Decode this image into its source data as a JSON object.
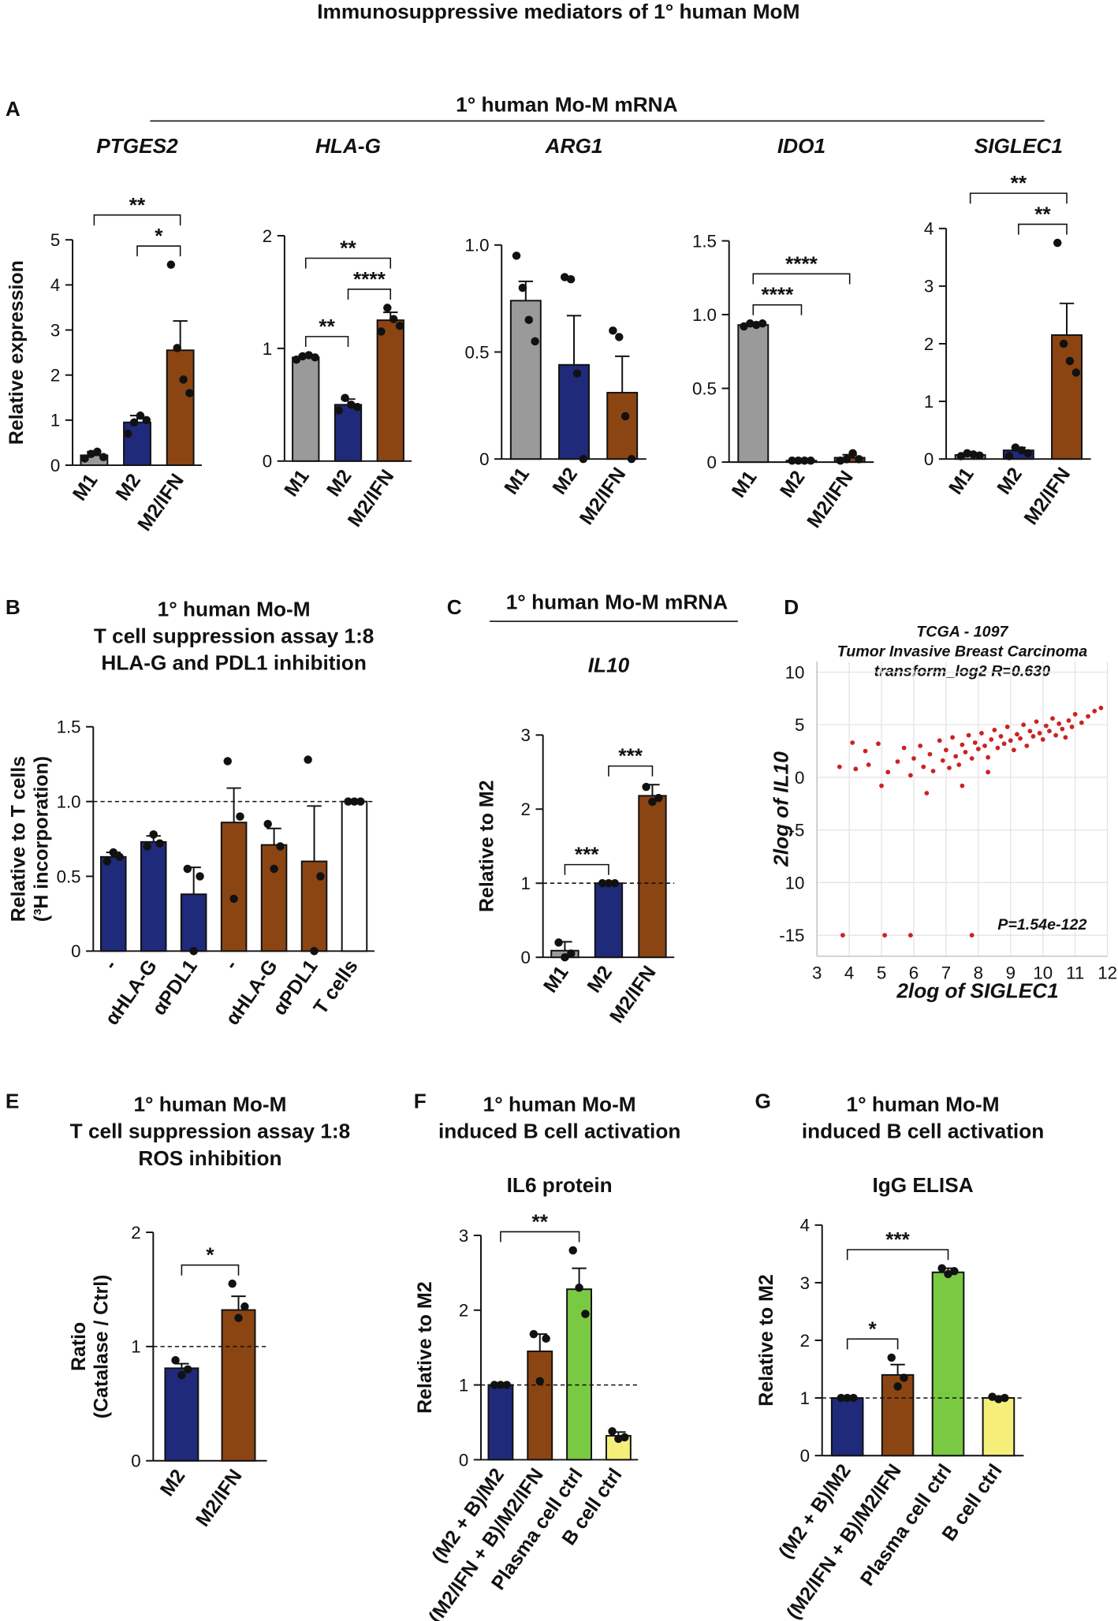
{
  "title": "Immunosuppressive mediators of 1° human MoM",
  "group_title": "1° human Mo-M mRNA",
  "chart_data": [
    {
      "type": "bar",
      "panel": "A",
      "subtitle": "PTGES2",
      "ylabel": [
        "Relative expression"
      ],
      "categories": [
        "M1",
        "M2",
        "M2/IFN"
      ],
      "values": [
        0.22,
        0.95,
        2.55
      ],
      "errors": [
        0.08,
        0.15,
        0.65
      ],
      "colors": [
        "#9a9a9a",
        "#1f2a7a",
        "#8b4513"
      ],
      "points": [
        [
          0.15,
          0.25,
          0.3,
          0.18
        ],
        [
          0.7,
          0.95,
          1.1,
          1.0
        ],
        [
          4.45,
          2.6,
          1.9,
          1.6
        ]
      ],
      "ylim": [
        0,
        5
      ],
      "yticks": [
        0,
        1,
        2,
        3,
        4,
        5
      ],
      "annotations": [
        {
          "from": 1,
          "to": 2,
          "label": "*"
        },
        {
          "from": 0,
          "to": 2,
          "label": "**"
        }
      ]
    },
    {
      "type": "bar",
      "subtitle": "HLA-G",
      "categories": [
        "M1",
        "M2",
        "M2/IFN"
      ],
      "values": [
        0.92,
        0.5,
        1.25
      ],
      "errors": [
        0.02,
        0.05,
        0.07
      ],
      "colors": [
        "#9a9a9a",
        "#1f2a7a",
        "#8b4513"
      ],
      "points": [
        [
          0.9,
          0.93,
          0.94,
          0.92
        ],
        [
          0.45,
          0.56,
          0.5,
          0.48
        ],
        [
          1.15,
          1.36,
          1.26,
          1.2
        ]
      ],
      "ylim": [
        0,
        2
      ],
      "yticks": [
        0,
        1,
        2
      ],
      "annotations": [
        {
          "from": 0,
          "to": 1,
          "label": "**"
        },
        {
          "from": 1,
          "to": 2,
          "label": "****"
        },
        {
          "from": 0,
          "to": 2,
          "label": "**"
        }
      ]
    },
    {
      "type": "bar",
      "subtitle": "ARG1",
      "categories": [
        "M1",
        "M2",
        "M2/IFN"
      ],
      "values": [
        0.74,
        0.44,
        0.31
      ],
      "errors": [
        0.09,
        0.23,
        0.17
      ],
      "colors": [
        "#9a9a9a",
        "#1f2a7a",
        "#8b4513"
      ],
      "points": [
        [
          0.95,
          0.8,
          0.65,
          0.55
        ],
        [
          0.85,
          0.84,
          0.4,
          0.0
        ],
        [
          0.6,
          0.57,
          0.2,
          0.0
        ]
      ],
      "ylim": [
        0,
        1
      ],
      "yticks": [
        0,
        0.5,
        {
          "value": 1,
          "label": "1.0"
        }
      ],
      "annotations": []
    },
    {
      "type": "bar",
      "subtitle": "IDO1",
      "categories": [
        "M1",
        "M2",
        "M2/IFN"
      ],
      "values": [
        0.93,
        0.01,
        0.03
      ],
      "errors": [
        0.01,
        0.005,
        0.02
      ],
      "colors": [
        "#9a9a9a",
        "#1f2a7a",
        "#8b4513"
      ],
      "points": [
        [
          0.92,
          0.94,
          0.93,
          0.94
        ],
        [
          0.01,
          0.01,
          0.01,
          0.01
        ],
        [
          0.01,
          0.02,
          0.06,
          0.02
        ]
      ],
      "ylim": [
        0,
        1.5
      ],
      "yticks": [
        0,
        0.5,
        {
          "value": 1,
          "label": "1.0"
        },
        1.5
      ],
      "annotations": [
        {
          "from": 0,
          "to": 1,
          "label": "****"
        },
        {
          "from": 0,
          "to": 2,
          "label": "****"
        }
      ]
    },
    {
      "type": "bar",
      "subtitle": "SIGLEC1",
      "categories": [
        "M1",
        "M2",
        "M2/IFN"
      ],
      "values": [
        0.07,
        0.15,
        2.15
      ],
      "errors": [
        0.02,
        0.05,
        0.55
      ],
      "colors": [
        "#9a9a9a",
        "#1f2a7a",
        "#8b4513"
      ],
      "points": [
        [
          0.05,
          0.1,
          0.08,
          0.06
        ],
        [
          0.05,
          0.2,
          0.15,
          0.1
        ],
        [
          3.75,
          2.0,
          1.7,
          1.5
        ]
      ],
      "ylim": [
        0,
        4
      ],
      "yticks": [
        0,
        1,
        2,
        3,
        4
      ],
      "annotations": [
        {
          "from": 1,
          "to": 2,
          "label": "**"
        },
        {
          "from": 0,
          "to": 2,
          "label": "**"
        }
      ]
    },
    {
      "type": "bar",
      "panel": "B",
      "title": [
        "1° human Mo-M",
        "T cell suppression assay 1:8",
        "HLA-G and PDL1 inhibition"
      ],
      "ylabel": [
        "Relative to T cells",
        "(³H incorporation)"
      ],
      "categories": [
        "-",
        "αHLA-G",
        "αPDL1",
        "-",
        "αHLA-G",
        "αPDL1",
        "T cells"
      ],
      "values": [
        0.63,
        0.73,
        0.38,
        0.86,
        0.71,
        0.6,
        1.0
      ],
      "errors": [
        0.03,
        0.04,
        0.18,
        0.23,
        0.11,
        0.37,
        0.0
      ],
      "colors": [
        "#1f2a7a",
        "#1f2a7a",
        "#1f2a7a",
        "#8b4513",
        "#8b4513",
        "#8b4513",
        "#ffffff"
      ],
      "points": [
        [
          0.6,
          0.66,
          0.63
        ],
        [
          0.7,
          0.78,
          0.72
        ],
        [
          0.55,
          0.0,
          0.5
        ],
        [
          1.27,
          0.35,
          0.9
        ],
        [
          0.85,
          0.55,
          0.7
        ],
        [
          1.28,
          0.0,
          0.5
        ],
        [
          1.0,
          1.0,
          1.0
        ]
      ],
      "ylim": [
        0,
        1.5
      ],
      "yticks": [
        0,
        0.5,
        {
          "value": 1,
          "label": "1.0"
        },
        1.5
      ],
      "reference_line": 1,
      "annotations": []
    },
    {
      "type": "bar",
      "panel": "C",
      "header": "1° human Mo-M mRNA",
      "subtitle": "IL10",
      "ylabel": [
        "Relative to M2"
      ],
      "categories": [
        "M1",
        "M2",
        "M2/IFN"
      ],
      "values": [
        0.09,
        1.0,
        2.18
      ],
      "errors": [
        0.12,
        0.0,
        0.15
      ],
      "colors": [
        "#9a9a9a",
        "#1f2a7a",
        "#8b4513"
      ],
      "points": [
        [
          0.2,
          0.0,
          0.05
        ],
        [
          1.0,
          1.0,
          1.0
        ],
        [
          2.3,
          2.1,
          2.15
        ]
      ],
      "ylim": [
        0,
        3
      ],
      "yticks": [
        0,
        1,
        2,
        3
      ],
      "reference_line": 1,
      "annotations": [
        {
          "from": 0,
          "to": 1,
          "label": "***"
        },
        {
          "from": 1,
          "to": 2,
          "label": "***"
        }
      ]
    },
    {
      "type": "scatter",
      "panel": "D",
      "title": [
        "TCGA - 1097",
        "Tumor Invasive Breast Carcinoma",
        "transform_log2 R=0.630"
      ],
      "xlabel": "2log of SIGLEC1",
      "ylabel": [
        "2log of IL10"
      ],
      "annotation": "P=1.54e-122",
      "color": "#cc2222",
      "grid": true,
      "x": [
        4.2,
        4.5,
        4.6,
        4.9,
        5.2,
        5.0,
        5.5,
        5.7,
        5.9,
        6.0,
        6.2,
        6.3,
        6.5,
        6.6,
        6.8,
        6.9,
        7.0,
        7.1,
        7.2,
        7.3,
        7.4,
        7.5,
        7.6,
        7.7,
        7.8,
        7.9,
        8.0,
        8.1,
        8.2,
        8.3,
        8.4,
        8.5,
        8.6,
        8.7,
        8.8,
        8.9,
        9.0,
        9.1,
        9.2,
        9.3,
        9.4,
        9.5,
        9.6,
        9.7,
        9.8,
        9.9,
        10.0,
        10.1,
        10.2,
        10.3,
        10.4,
        10.5,
        10.6,
        10.7,
        10.8,
        10.9,
        11.0,
        11.2,
        11.4,
        11.6,
        11.8,
        3.8,
        5.1,
        5.9,
        7.8,
        6.4,
        7.5,
        8.3,
        3.7,
        4.1
      ],
      "y": [
        0.8,
        2.5,
        1.2,
        3.2,
        0.5,
        -0.8,
        1.5,
        2.8,
        0.2,
        1.8,
        3.0,
        1.0,
        2.2,
        0.6,
        3.5,
        1.6,
        2.6,
        0.9,
        3.8,
        2.0,
        1.2,
        3.1,
        2.4,
        4.0,
        1.8,
        3.3,
        2.7,
        4.2,
        3.0,
        1.9,
        3.6,
        4.5,
        2.8,
        3.9,
        3.2,
        4.8,
        3.5,
        2.6,
        4.1,
        3.7,
        5.0,
        3.0,
        4.4,
        3.9,
        5.3,
        4.2,
        3.6,
        4.9,
        4.4,
        5.6,
        4.0,
        5.1,
        4.6,
        3.8,
        5.4,
        4.8,
        6.0,
        5.2,
        5.8,
        6.3,
        6.6,
        -15,
        -15,
        -15,
        -15,
        -1.5,
        -0.8,
        0.5,
        1.0,
        3.3
      ],
      "xlim": [
        3,
        12
      ],
      "xticks": [
        3,
        4,
        5,
        6,
        7,
        8,
        9,
        10,
        11,
        12
      ],
      "ylim": [
        -17,
        11
      ],
      "yticks": [
        10,
        5,
        0,
        -5,
        {
          "value": -10,
          "label": "10"
        },
        -15
      ]
    },
    {
      "type": "bar",
      "panel": "E",
      "title": [
        "1° human Mo-M",
        "T cell suppression assay 1:8",
        "ROS inhibition"
      ],
      "ylabel": [
        "Ratio",
        "(Catalase / Ctrl)"
      ],
      "categories": [
        "M2",
        "M2/IFN"
      ],
      "values": [
        0.81,
        1.32
      ],
      "errors": [
        0.04,
        0.12
      ],
      "colors": [
        "#1f2a7a",
        "#8b4513"
      ],
      "points": [
        [
          0.88,
          0.75,
          0.8
        ],
        [
          1.55,
          1.25,
          1.35
        ]
      ],
      "ylim": [
        0,
        2
      ],
      "yticks": [
        0,
        1,
        2
      ],
      "reference_line": 1,
      "annotations": [
        {
          "from": 0,
          "to": 1,
          "label": "*"
        }
      ]
    },
    {
      "type": "bar",
      "panel": "F",
      "title": [
        "1° human Mo-M",
        "induced B cell activation"
      ],
      "subtitle": "IL6 protein",
      "ylabel": [
        "Relative to M2"
      ],
      "categories": [
        "(M2 + B)/M2",
        "(M2/IFN + B)/M2/IFN",
        "Plasma cell ctrl",
        "B cell ctrl"
      ],
      "values": [
        1.0,
        1.45,
        2.28,
        0.32
      ],
      "errors": [
        0.0,
        0.23,
        0.28,
        0.05
      ],
      "colors": [
        "#1f2a7a",
        "#8b4513",
        "#7ac943",
        "#f5ef7a"
      ],
      "points": [
        [
          1.0,
          1.0,
          1.0
        ],
        [
          1.68,
          1.05,
          1.62
        ],
        [
          2.8,
          2.3,
          1.95
        ],
        [
          0.38,
          0.28,
          0.3
        ]
      ],
      "ylim": [
        0,
        3
      ],
      "yticks": [
        0,
        1,
        2,
        3
      ],
      "reference_line": 1,
      "annotations": [
        {
          "from": 0,
          "to": 2,
          "label": "**"
        }
      ]
    },
    {
      "type": "bar",
      "panel": "G",
      "title": [
        "1° human Mo-M",
        "induced B cell activation"
      ],
      "subtitle": "IgG ELISA",
      "ylabel": [
        "Relative to M2"
      ],
      "categories": [
        "(M2 + B)/M2",
        "(M2/IFN + B)/M2/IFN",
        "Plasma cell ctrl",
        "B cell ctrl"
      ],
      "values": [
        1.0,
        1.4,
        3.18,
        1.0
      ],
      "errors": [
        0.0,
        0.18,
        0.07,
        0.03
      ],
      "colors": [
        "#1f2a7a",
        "#8b4513",
        "#7ac943",
        "#f5ef7a"
      ],
      "points": [
        [
          1.0,
          1.0,
          1.0
        ],
        [
          1.7,
          1.2,
          1.35
        ],
        [
          3.25,
          3.15,
          3.2
        ],
        [
          1.02,
          0.98,
          1.0
        ]
      ],
      "ylim": [
        0,
        4
      ],
      "yticks": [
        0,
        1,
        2,
        3,
        4
      ],
      "reference_line": 1,
      "annotations": [
        {
          "from": 0,
          "to": 1,
          "label": "*"
        },
        {
          "from": 0,
          "to": 2,
          "label": "***"
        }
      ]
    }
  ]
}
